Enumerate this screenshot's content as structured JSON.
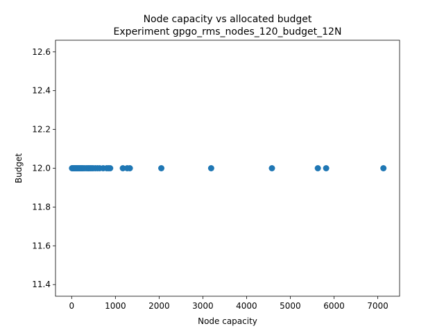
{
  "chart_data": {
    "type": "scatter",
    "title": "Node capacity vs allocated budget",
    "subtitle": "Experiment gpgo_rms_nodes_120_budget_12N",
    "xlabel": "Node capacity",
    "ylabel": "Budget",
    "xlim": [
      -370,
      7500
    ],
    "ylim": [
      11.34,
      12.66
    ],
    "xticks": [
      0,
      1000,
      2000,
      3000,
      4000,
      5000,
      6000,
      7000
    ],
    "yticks": [
      11.4,
      11.6,
      11.8,
      12.0,
      12.2,
      12.4,
      12.6
    ],
    "xtick_labels": [
      "0",
      "1000",
      "2000",
      "3000",
      "4000",
      "5000",
      "6000",
      "7000"
    ],
    "ytick_labels": [
      "11.4",
      "11.6",
      "11.8",
      "12.0",
      "12.2",
      "12.4",
      "12.6"
    ],
    "grid": false,
    "marker_color": "#1f77b4",
    "points": [
      {
        "x": 8,
        "y": 12.0
      },
      {
        "x": 15,
        "y": 12.0
      },
      {
        "x": 22,
        "y": 12.0
      },
      {
        "x": 30,
        "y": 12.0
      },
      {
        "x": 38,
        "y": 12.0
      },
      {
        "x": 46,
        "y": 12.0
      },
      {
        "x": 55,
        "y": 12.0
      },
      {
        "x": 64,
        "y": 12.0
      },
      {
        "x": 72,
        "y": 12.0
      },
      {
        "x": 80,
        "y": 12.0
      },
      {
        "x": 90,
        "y": 12.0
      },
      {
        "x": 100,
        "y": 12.0
      },
      {
        "x": 110,
        "y": 12.0
      },
      {
        "x": 120,
        "y": 12.0
      },
      {
        "x": 132,
        "y": 12.0
      },
      {
        "x": 145,
        "y": 12.0
      },
      {
        "x": 158,
        "y": 12.0
      },
      {
        "x": 172,
        "y": 12.0
      },
      {
        "x": 188,
        "y": 12.0
      },
      {
        "x": 205,
        "y": 12.0
      },
      {
        "x": 222,
        "y": 12.0
      },
      {
        "x": 240,
        "y": 12.0
      },
      {
        "x": 260,
        "y": 12.0
      },
      {
        "x": 290,
        "y": 12.0
      },
      {
        "x": 330,
        "y": 12.0
      },
      {
        "x": 365,
        "y": 12.0
      },
      {
        "x": 400,
        "y": 12.0
      },
      {
        "x": 430,
        "y": 12.0
      },
      {
        "x": 460,
        "y": 12.0
      },
      {
        "x": 490,
        "y": 12.0
      },
      {
        "x": 540,
        "y": 12.0
      },
      {
        "x": 590,
        "y": 12.0
      },
      {
        "x": 640,
        "y": 12.0
      },
      {
        "x": 720,
        "y": 12.0
      },
      {
        "x": 800,
        "y": 12.0
      },
      {
        "x": 840,
        "y": 12.0
      },
      {
        "x": 880,
        "y": 12.0
      },
      {
        "x": 1170,
        "y": 12.0
      },
      {
        "x": 1270,
        "y": 12.0
      },
      {
        "x": 1330,
        "y": 12.0
      },
      {
        "x": 2050,
        "y": 12.0
      },
      {
        "x": 3190,
        "y": 12.0
      },
      {
        "x": 4580,
        "y": 12.0
      },
      {
        "x": 5630,
        "y": 12.0
      },
      {
        "x": 5820,
        "y": 12.0
      },
      {
        "x": 7130,
        "y": 12.0
      }
    ]
  }
}
